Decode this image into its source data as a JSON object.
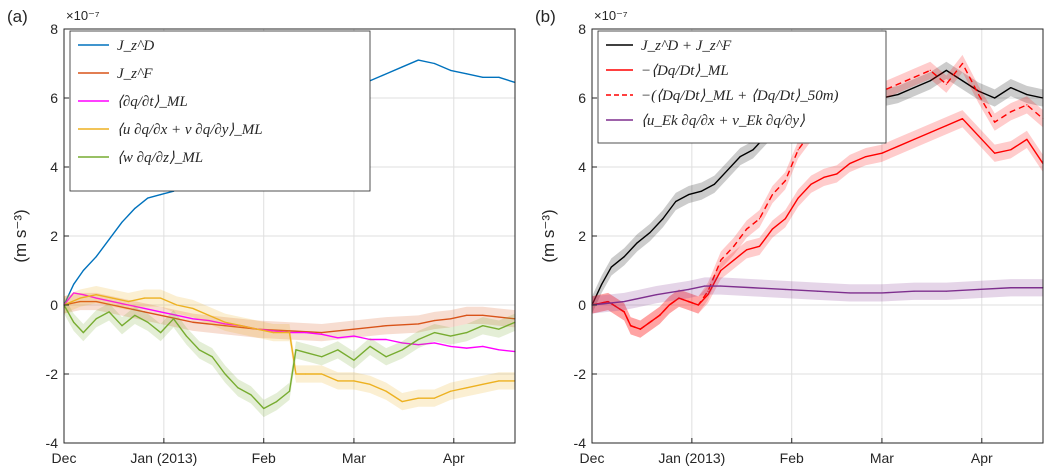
{
  "chart_data": [
    {
      "panel_label": "(a)",
      "type": "line",
      "ylabel": "(m s⁻³)",
      "exponent": "×10⁻⁷",
      "ylim": [
        -4,
        8
      ],
      "yticks": [
        -4,
        -2,
        0,
        2,
        4,
        6,
        8
      ],
      "x_ticks": [
        "Dec",
        "Jan (2013)",
        "Feb",
        "Mar",
        "Apr"
      ],
      "x_tick_days": [
        0,
        31,
        62,
        90,
        121
      ],
      "xlim_days": [
        0,
        140
      ],
      "grid": true,
      "legend_position": "top-left",
      "colors": {
        "blue": "#0072BD",
        "orange": "#D95319",
        "magenta": "#FF00FF",
        "yellow": "#EDB120",
        "green": "#77AC30"
      },
      "series": [
        {
          "name": "J_z^D",
          "color": "#0072BD",
          "band": false,
          "x": [
            0,
            3,
            6,
            10,
            14,
            18,
            22,
            26,
            30,
            34,
            38,
            42,
            46,
            50,
            55,
            60,
            65,
            70,
            75,
            80,
            85,
            90,
            95,
            100,
            105,
            110,
            115,
            120,
            125,
            130,
            135,
            140
          ],
          "y": [
            0,
            0.6,
            1.0,
            1.4,
            1.9,
            2.4,
            2.8,
            3.1,
            3.2,
            3.3,
            3.6,
            4.0,
            4.3,
            4.7,
            5.1,
            5.5,
            5.8,
            6.0,
            6.2,
            6.3,
            6.35,
            6.4,
            6.5,
            6.7,
            6.9,
            7.1,
            7.0,
            6.8,
            6.7,
            6.6,
            6.6,
            6.45
          ]
        },
        {
          "name": "J_z^F",
          "color": "#D95319",
          "band": true,
          "x": [
            0,
            5,
            10,
            15,
            20,
            25,
            30,
            40,
            50,
            60,
            70,
            80,
            90,
            100,
            110,
            115,
            120,
            125,
            130,
            135,
            140
          ],
          "y": [
            0,
            0.1,
            0.1,
            0.0,
            -0.1,
            -0.2,
            -0.3,
            -0.5,
            -0.6,
            -0.7,
            -0.75,
            -0.8,
            -0.7,
            -0.6,
            -0.55,
            -0.45,
            -0.4,
            -0.3,
            -0.3,
            -0.35,
            -0.4
          ]
        },
        {
          "name": "⟨∂q/∂t⟩_ML",
          "color": "#FF00FF",
          "band": false,
          "x": [
            0,
            3,
            6,
            10,
            15,
            20,
            25,
            30,
            35,
            40,
            45,
            50,
            55,
            60,
            65,
            70,
            75,
            80,
            85,
            90,
            95,
            100,
            105,
            110,
            115,
            120,
            125,
            130,
            135,
            140
          ],
          "y": [
            0,
            0.35,
            0.3,
            0.2,
            0.1,
            0.0,
            -0.1,
            -0.2,
            -0.3,
            -0.4,
            -0.45,
            -0.55,
            -0.6,
            -0.7,
            -0.75,
            -0.8,
            -0.8,
            -0.85,
            -0.95,
            -0.9,
            -1.0,
            -1.0,
            -1.1,
            -1.15,
            -1.1,
            -1.2,
            -1.25,
            -1.2,
            -1.3,
            -1.35
          ]
        },
        {
          "name": "⟨u ∂q/∂x + v ∂q/∂y⟩_ML",
          "color": "#EDB120",
          "band": true,
          "x": [
            0,
            5,
            10,
            15,
            20,
            25,
            30,
            35,
            40,
            45,
            50,
            55,
            60,
            65,
            70,
            72,
            75,
            80,
            85,
            90,
            95,
            100,
            105,
            110,
            115,
            120,
            125,
            130,
            135,
            140
          ],
          "y": [
            0,
            0.2,
            0.3,
            0.2,
            0.1,
            0.2,
            0.2,
            0.0,
            -0.1,
            -0.3,
            -0.5,
            -0.6,
            -0.7,
            -0.8,
            -0.8,
            -2.0,
            -2.0,
            -2.0,
            -2.2,
            -2.2,
            -2.3,
            -2.5,
            -2.8,
            -2.7,
            -2.7,
            -2.5,
            -2.4,
            -2.3,
            -2.2,
            -2.2
          ]
        },
        {
          "name": "⟨w ∂q/∂z⟩_ML",
          "color": "#77AC30",
          "band": true,
          "x": [
            0,
            3,
            6,
            10,
            14,
            18,
            22,
            26,
            30,
            34,
            38,
            42,
            46,
            50,
            54,
            58,
            62,
            66,
            70,
            72,
            76,
            80,
            85,
            90,
            95,
            100,
            105,
            110,
            115,
            120,
            125,
            130,
            135,
            140
          ],
          "y": [
            0,
            -0.5,
            -0.8,
            -0.4,
            -0.2,
            -0.6,
            -0.3,
            -0.5,
            -0.8,
            -0.4,
            -0.9,
            -1.3,
            -1.5,
            -2.0,
            -2.4,
            -2.6,
            -3.0,
            -2.8,
            -2.5,
            -1.3,
            -1.4,
            -1.5,
            -1.3,
            -1.6,
            -1.2,
            -1.5,
            -1.3,
            -1.0,
            -0.8,
            -0.9,
            -0.8,
            -0.6,
            -0.7,
            -0.5
          ]
        }
      ]
    },
    {
      "panel_label": "(b)",
      "type": "line",
      "ylabel": "(m s⁻³)",
      "exponent": "×10⁻⁷",
      "ylim": [
        -4,
        8
      ],
      "yticks": [
        -4,
        -2,
        0,
        2,
        4,
        6,
        8
      ],
      "x_ticks": [
        "Dec",
        "Jan (2013)",
        "Feb",
        "Mar",
        "Apr"
      ],
      "x_tick_days": [
        0,
        31,
        62,
        90,
        121
      ],
      "xlim_days": [
        0,
        140
      ],
      "grid": true,
      "legend_position": "top-left",
      "colors": {
        "black": "#000000",
        "red": "#FF0000",
        "purple": "#7E2F8E"
      },
      "series": [
        {
          "name": "J_z^D + J_z^F",
          "color": "#000000",
          "dash": false,
          "band": true,
          "x": [
            0,
            3,
            6,
            10,
            14,
            18,
            22,
            26,
            30,
            34,
            38,
            42,
            46,
            50,
            55,
            60,
            65,
            70,
            75,
            80,
            85,
            90,
            95,
            100,
            105,
            110,
            115,
            120,
            125,
            130,
            135,
            140
          ],
          "y": [
            0,
            0.6,
            1.1,
            1.4,
            1.8,
            2.1,
            2.5,
            3.0,
            3.2,
            3.3,
            3.5,
            3.9,
            4.3,
            4.5,
            5.0,
            5.3,
            5.6,
            5.7,
            5.8,
            5.8,
            5.9,
            6.0,
            6.1,
            6.3,
            6.5,
            6.8,
            6.5,
            6.2,
            6.0,
            6.3,
            6.1,
            6.0
          ]
        },
        {
          "name": "−⟨Dq/Dt⟩_ML",
          "color": "#FF0000",
          "dash": false,
          "band": true,
          "x": [
            0,
            5,
            10,
            12,
            15,
            18,
            21,
            24,
            27,
            30,
            33,
            36,
            40,
            44,
            48,
            52,
            56,
            60,
            64,
            68,
            72,
            76,
            80,
            85,
            90,
            95,
            100,
            105,
            110,
            115,
            120,
            125,
            130,
            135,
            140
          ],
          "y": [
            0,
            0.1,
            -0.2,
            -0.6,
            -0.7,
            -0.5,
            -0.3,
            0.0,
            0.2,
            0.1,
            0.0,
            0.3,
            1.0,
            1.3,
            1.6,
            1.7,
            2.2,
            2.5,
            3.1,
            3.5,
            3.7,
            3.8,
            4.1,
            4.3,
            4.4,
            4.6,
            4.8,
            5.0,
            5.2,
            5.4,
            4.9,
            4.4,
            4.5,
            4.8,
            4.1
          ]
        },
        {
          "name": "−(⟨Dq/Dt⟩_ML + ⟨Dq/Dt⟩_50m)",
          "color": "#FF0000",
          "dash": true,
          "band": true,
          "x": [
            0,
            5,
            10,
            12,
            15,
            18,
            21,
            24,
            27,
            30,
            33,
            36,
            40,
            44,
            48,
            52,
            56,
            60,
            64,
            68,
            72,
            76,
            80,
            85,
            90,
            95,
            100,
            105,
            110,
            115,
            120,
            125,
            130,
            135,
            140
          ],
          "y": [
            0,
            0.1,
            -0.2,
            -0.6,
            -0.7,
            -0.5,
            -0.3,
            0.0,
            0.2,
            0.1,
            0.0,
            0.4,
            1.3,
            1.7,
            2.2,
            2.5,
            3.2,
            3.6,
            4.5,
            5.0,
            5.5,
            5.6,
            5.7,
            6.0,
            6.2,
            6.4,
            6.6,
            6.8,
            6.4,
            7.0,
            6.1,
            5.3,
            5.6,
            5.8,
            5.4
          ]
        },
        {
          "name": "⟨u_Ek ∂q/∂x + v_Ek ∂q/∂y⟩",
          "color": "#7E2F8E",
          "dash": false,
          "band": true,
          "x": [
            0,
            10,
            20,
            30,
            35,
            40,
            50,
            60,
            70,
            80,
            90,
            100,
            110,
            120,
            130,
            140
          ],
          "y": [
            0,
            0.1,
            0.3,
            0.45,
            0.55,
            0.55,
            0.5,
            0.45,
            0.4,
            0.35,
            0.35,
            0.4,
            0.4,
            0.45,
            0.5,
            0.5
          ]
        }
      ]
    }
  ],
  "legends": [
    [
      "J_z^D",
      "J_z^F",
      "⟨∂q/∂t⟩_ML",
      "⟨u ∂q/∂x + v ∂q/∂y⟩_ML",
      "⟨w ∂q/∂z⟩_ML"
    ],
    [
      "J_z^D + J_z^F",
      "−⟨Dq/Dt⟩_ML",
      "−(⟨Dq/Dt⟩_ML + ⟨Dq/Dt⟩_50m)",
      "⟨u_Ek ∂q/∂x + v_Ek ∂q/∂y⟩"
    ]
  ]
}
